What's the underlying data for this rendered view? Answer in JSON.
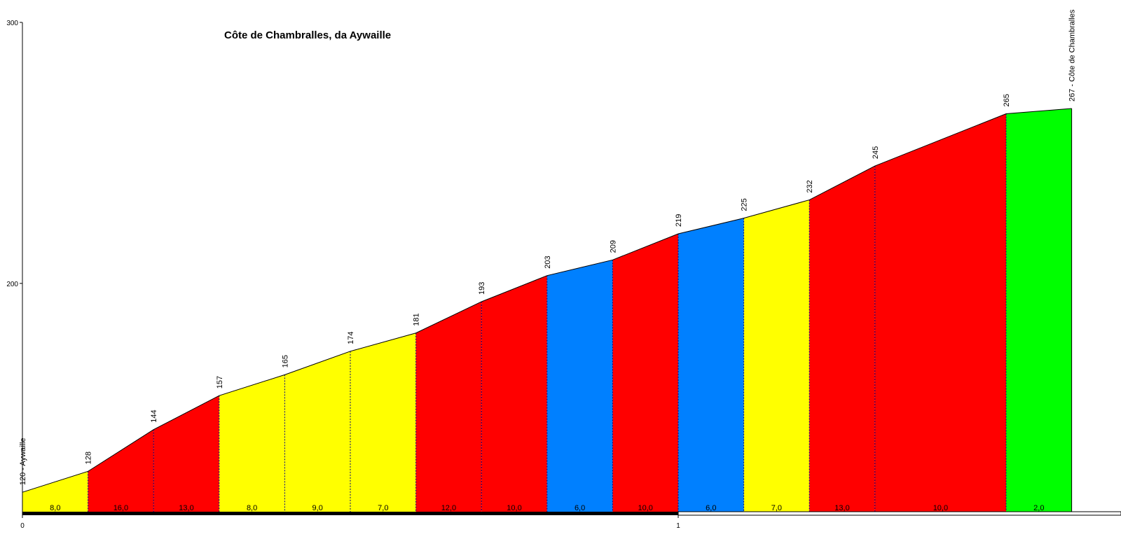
{
  "chart_data": {
    "type": "area",
    "title": "Côte de Chambralles, da Aywaille",
    "xlabel": "",
    "ylabel": "",
    "xlim": [
      0,
      1.6
    ],
    "ylim": [
      112,
      300
    ],
    "y_ticks": [
      "200",
      "300"
    ],
    "x_ticks": [
      "0",
      "1"
    ],
    "start_label": "120 - Aywaille",
    "end_label": "267 - Côte de Chambralles",
    "distance_km": [
      0,
      0.1,
      0.2,
      0.3,
      0.4,
      0.5,
      0.6,
      0.7,
      0.8,
      0.9,
      1.0,
      1.1,
      1.2,
      1.3,
      1.5,
      1.6
    ],
    "elevation_labels": [
      "120 - Aywaille",
      "128",
      "144",
      "157",
      "165",
      "174",
      "181",
      "193",
      "203",
      "209",
      "219",
      "225",
      "232",
      "245",
      "265",
      "267 - Côte de Chambralles"
    ],
    "elevations": [
      120,
      128,
      144,
      157,
      165,
      174,
      181,
      193,
      203,
      209,
      219,
      225,
      232,
      245,
      265,
      267
    ],
    "segment_grades": [
      "8,0",
      "16,0",
      "13,0",
      "8,0",
      "9,0",
      "7,0",
      "12,0",
      "10,0",
      "6,0",
      "10,0",
      "6,0",
      "7,0",
      "13,0",
      "10,0",
      "2,0"
    ],
    "grade_colors": {
      "up_to_5": "#00ff00",
      "5_to_7": "#0080ff",
      "7_to_10": "#ffff00",
      "10_plus": "#ff0000"
    }
  }
}
